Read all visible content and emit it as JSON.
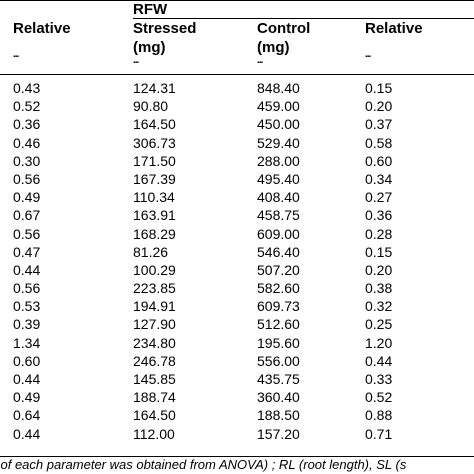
{
  "header": {
    "group_label": "RFW",
    "col1": {
      "line1": "Relative",
      "line2": "..."
    },
    "col2": {
      "line1": "Stressed",
      "line2": "(mg)",
      "line3": "..."
    },
    "col3": {
      "line1": "Control",
      "line2": "(mg)",
      "line3": "..."
    },
    "col4": {
      "line1": "Relative",
      "line2": "..."
    }
  },
  "rows": [
    [
      "0.43",
      "124.31",
      "848.40",
      "0.15"
    ],
    [
      "0.52",
      "90.80",
      "459.00",
      "0.20"
    ],
    [
      "0.36",
      "164.50",
      "450.00",
      "0.37"
    ],
    [
      "0.46",
      "306.73",
      "529.40",
      "0.58"
    ],
    [
      "0.30",
      "171.50",
      "288.00",
      "0.60"
    ],
    [
      "0.56",
      "167.39",
      "495.40",
      "0.34"
    ],
    [
      "0.49",
      "110.34",
      "408.40",
      "0.27"
    ],
    [
      "0.67",
      "163.91",
      "458.75",
      "0.36"
    ],
    [
      "0.56",
      "168.29",
      "609.00",
      "0.28"
    ],
    [
      "0.47",
      "81.26",
      "546.40",
      "0.15"
    ],
    [
      "0.44",
      "100.29",
      "507.20",
      "0.20"
    ],
    [
      "0.56",
      "223.85",
      "582.60",
      "0.38"
    ],
    [
      "0.53",
      "194.91",
      "609.73",
      "0.32"
    ],
    [
      "0.39",
      "127.90",
      "512.60",
      "0.25"
    ],
    [
      "1.34",
      "234.80",
      "195.60",
      "1.20"
    ],
    [
      "0.60",
      "246.78",
      "556.00",
      "0.44"
    ],
    [
      "0.44",
      "145.85",
      "435.75",
      "0.33"
    ],
    [
      "0.49",
      "188.74",
      "360.40",
      "0.52"
    ],
    [
      "0.64",
      "164.50",
      "188.50",
      "0.88"
    ],
    [
      "0.44",
      "112.00",
      "157.20",
      "0.71"
    ]
  ],
  "footnote": "l of each parameter was obtained from ANOVA) ; RL (root length), SL (s"
}
